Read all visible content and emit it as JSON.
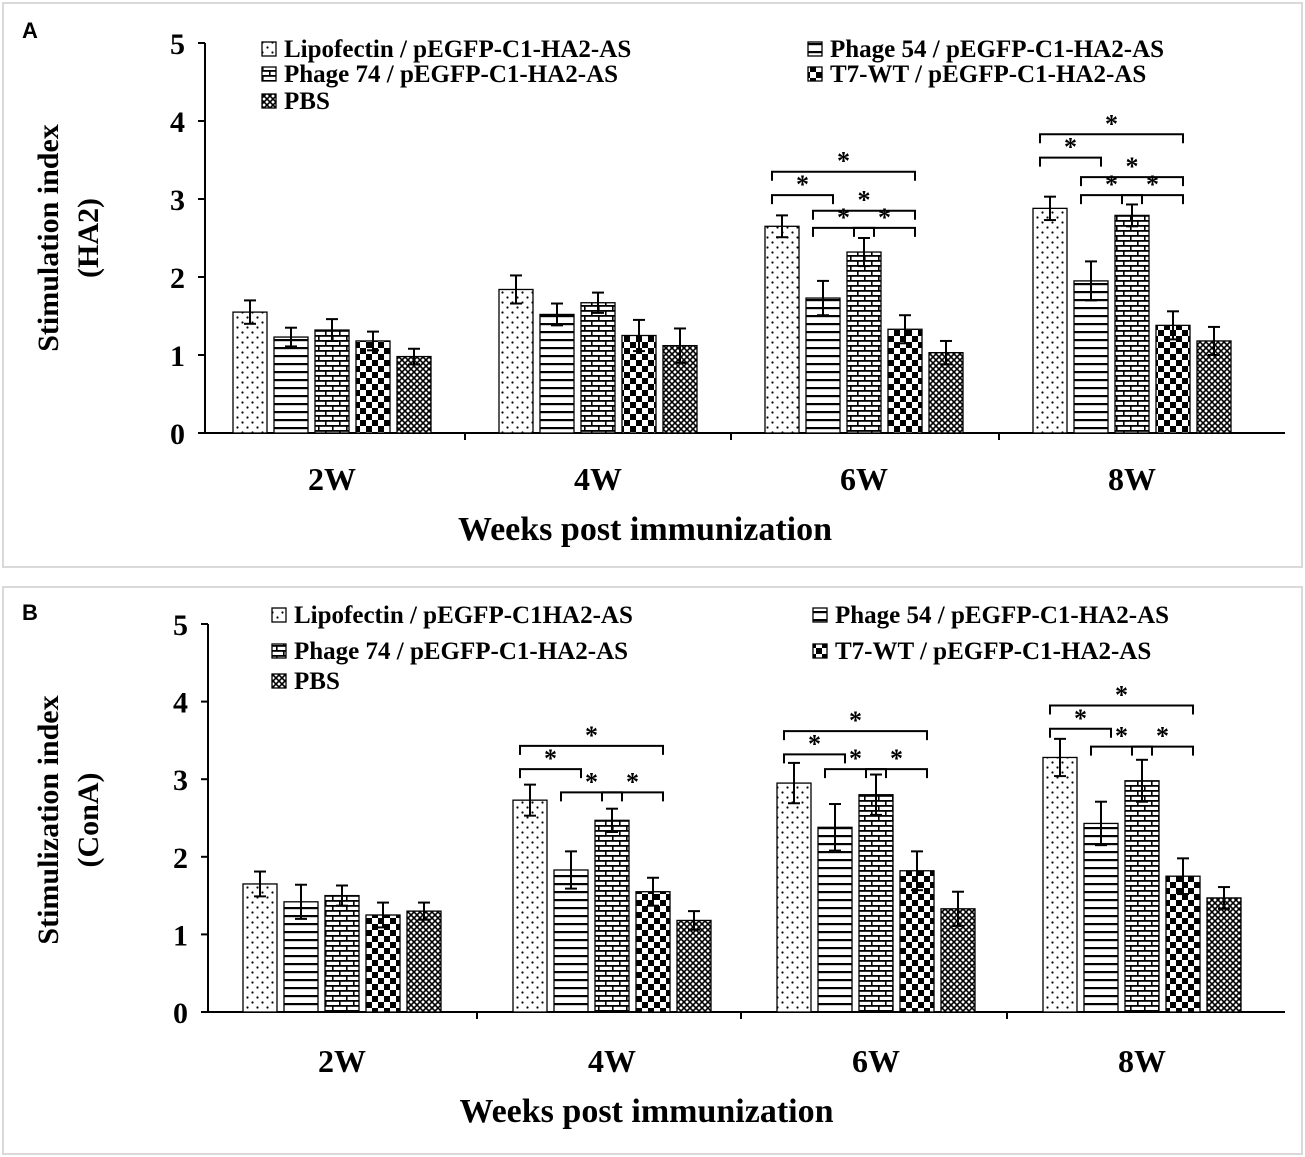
{
  "colors": {
    "ink": "#000000",
    "frame": "#d9d9d9",
    "background": "#ffffff"
  },
  "panel_labels": [
    "A",
    "B"
  ],
  "chart_data": [
    {
      "type": "bar",
      "panel": "A",
      "title": "",
      "xlabel": "Weeks post immunization",
      "ylabel": [
        "Stimulation index",
        "(HA2)"
      ],
      "ylim": [
        0,
        5
      ],
      "yticks": [
        "0",
        "1",
        "2",
        "3",
        "4",
        "5"
      ],
      "categories": [
        "2W",
        "4W",
        "6W",
        "8W"
      ],
      "legend_position": "top",
      "series": [
        {
          "name": "Lipofectin / pEGFP-C1-HA2-AS",
          "pattern": "dots",
          "values": [
            1.55,
            1.84,
            2.65,
            2.88
          ],
          "errors": [
            0.15,
            0.18,
            0.14,
            0.15
          ]
        },
        {
          "name": "Phage 54 / pEGFP-C1-HA2-AS",
          "pattern": "hlines",
          "values": [
            1.23,
            1.52,
            1.73,
            1.95
          ],
          "errors": [
            0.12,
            0.14,
            0.22,
            0.25
          ]
        },
        {
          "name": "Phage 74 / pEGFP-C1-HA2-AS",
          "pattern": "brick",
          "values": [
            1.32,
            1.67,
            2.32,
            2.79
          ],
          "errors": [
            0.14,
            0.13,
            0.18,
            0.14
          ]
        },
        {
          "name": "T7-WT / pEGFP-C1-HA2-AS",
          "pattern": "checker",
          "values": [
            1.18,
            1.25,
            1.33,
            1.38
          ],
          "errors": [
            0.12,
            0.2,
            0.18,
            0.18
          ]
        },
        {
          "name": "PBS",
          "pattern": "crosshatch",
          "values": [
            0.98,
            1.12,
            1.03,
            1.18
          ],
          "errors": [
            0.1,
            0.22,
            0.15,
            0.18
          ]
        }
      ],
      "annotations": [
        {
          "category": 2,
          "from": 0,
          "to": 3,
          "y": 3.35,
          "label": "*"
        },
        {
          "category": 2,
          "from": 0,
          "to": 1,
          "y": 3.05,
          "label": "*"
        },
        {
          "category": 2,
          "from": 1,
          "to": 3,
          "y": 2.85,
          "label": "*"
        },
        {
          "category": 2,
          "from": 1,
          "to": 2,
          "y": 2.63,
          "label": "*"
        },
        {
          "category": 2,
          "from": 2,
          "to": 3,
          "y": 2.63,
          "label": "*"
        },
        {
          "category": 3,
          "from": 0,
          "to": 3,
          "y": 3.83,
          "label": "*"
        },
        {
          "category": 3,
          "from": 0,
          "to": 1,
          "y": 3.53,
          "label": "*"
        },
        {
          "category": 3,
          "from": 1,
          "to": 3,
          "y": 3.28,
          "label": "*"
        },
        {
          "category": 3,
          "from": 1,
          "to": 2,
          "y": 3.05,
          "label": "*"
        },
        {
          "category": 3,
          "from": 2,
          "to": 3,
          "y": 3.05,
          "label": "*"
        }
      ]
    },
    {
      "type": "bar",
      "panel": "B",
      "title": "",
      "xlabel": "Weeks post immunization",
      "ylabel": [
        "Stimulization index",
        "(ConA)"
      ],
      "ylim": [
        0,
        5
      ],
      "yticks": [
        "0",
        "1",
        "2",
        "3",
        "4",
        "5"
      ],
      "categories": [
        "2W",
        "4W",
        "6W",
        "8W"
      ],
      "legend_position": "top",
      "series": [
        {
          "name": "Lipofectin / pEGFP-C1HA2-AS",
          "pattern": "dots",
          "values": [
            1.65,
            2.73,
            2.95,
            3.28
          ],
          "errors": [
            0.16,
            0.2,
            0.26,
            0.24
          ]
        },
        {
          "name": "Phage 54 / pEGFP-C1-HA2-AS",
          "pattern": "hlines",
          "values": [
            1.42,
            1.83,
            2.38,
            2.43
          ],
          "errors": [
            0.22,
            0.24,
            0.3,
            0.28
          ]
        },
        {
          "name": "Phage 74 / pEGFP-C1-HA2-AS",
          "pattern": "brick",
          "values": [
            1.5,
            2.47,
            2.8,
            2.98
          ],
          "errors": [
            0.13,
            0.15,
            0.26,
            0.27
          ]
        },
        {
          "name": "T7-WT / pEGFP-C1-HA2-AS",
          "pattern": "checker",
          "values": [
            1.25,
            1.55,
            1.82,
            1.75
          ],
          "errors": [
            0.16,
            0.18,
            0.25,
            0.23
          ]
        },
        {
          "name": "PBS",
          "pattern": "crosshatch",
          "values": [
            1.3,
            1.18,
            1.33,
            1.47
          ],
          "errors": [
            0.11,
            0.12,
            0.22,
            0.14
          ]
        }
      ],
      "annotations": [
        {
          "category": 1,
          "from": 0,
          "to": 3,
          "y": 3.43,
          "label": "*"
        },
        {
          "category": 1,
          "from": 0,
          "to": 1,
          "y": 3.13,
          "label": "*"
        },
        {
          "category": 1,
          "from": 1,
          "to": 2,
          "y": 2.83,
          "label": "*"
        },
        {
          "category": 1,
          "from": 2,
          "to": 3,
          "y": 2.83,
          "label": "*"
        },
        {
          "category": 2,
          "from": 0,
          "to": 3,
          "y": 3.62,
          "label": "*"
        },
        {
          "category": 2,
          "from": 0,
          "to": 1,
          "y": 3.32,
          "label": "*"
        },
        {
          "category": 2,
          "from": 1,
          "to": 2,
          "y": 3.13,
          "label": "*"
        },
        {
          "category": 2,
          "from": 2,
          "to": 3,
          "y": 3.13,
          "label": "*"
        },
        {
          "category": 3,
          "from": 0,
          "to": 3,
          "y": 3.95,
          "label": "*"
        },
        {
          "category": 3,
          "from": 0,
          "to": 1,
          "y": 3.65,
          "label": "*"
        },
        {
          "category": 3,
          "from": 1,
          "to": 2,
          "y": 3.42,
          "label": "*"
        },
        {
          "category": 3,
          "from": 2,
          "to": 3,
          "y": 3.42,
          "label": "*"
        }
      ]
    }
  ]
}
